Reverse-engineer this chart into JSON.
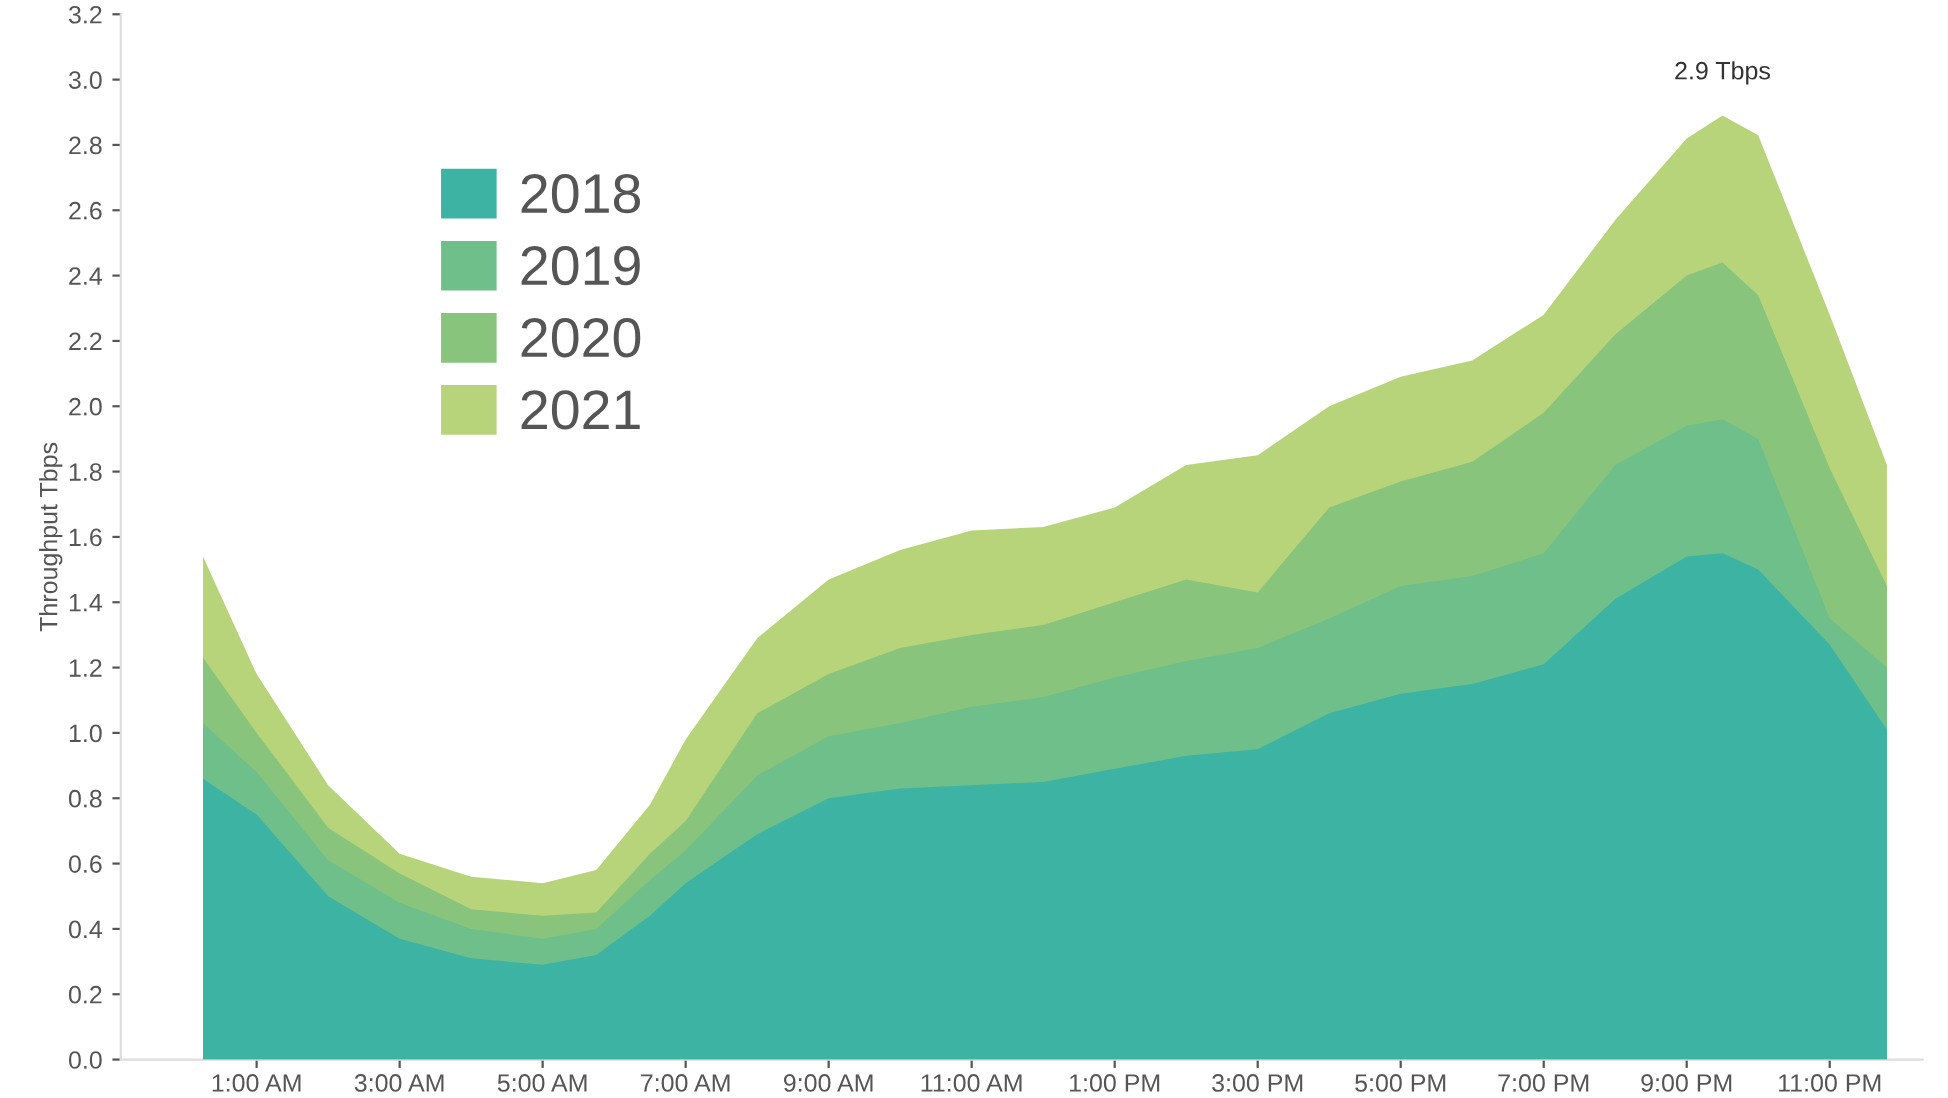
{
  "chart_data": {
    "type": "area",
    "ylabel": "Throughput Tbps",
    "x": [
      0.25,
      1,
      2,
      3,
      4,
      5,
      5.75,
      6.5,
      7,
      8,
      9,
      10,
      11,
      12,
      13,
      14,
      15,
      16,
      17,
      18,
      19,
      20,
      21,
      21.5,
      22,
      23,
      23.8
    ],
    "series": [
      {
        "name": "2018",
        "color": "#3db3a3",
        "values": [
          0.86,
          0.75,
          0.5,
          0.37,
          0.31,
          0.29,
          0.32,
          0.44,
          0.54,
          0.69,
          0.8,
          0.83,
          0.84,
          0.85,
          0.89,
          0.93,
          0.95,
          1.06,
          1.12,
          1.15,
          1.21,
          1.41,
          1.54,
          1.55,
          1.5,
          1.27,
          1.01
        ]
      },
      {
        "name": "2019",
        "color": "#6fbf8a",
        "values": [
          1.03,
          0.88,
          0.61,
          0.48,
          0.4,
          0.37,
          0.4,
          0.55,
          0.64,
          0.87,
          0.99,
          1.03,
          1.08,
          1.11,
          1.17,
          1.22,
          1.26,
          1.35,
          1.45,
          1.48,
          1.55,
          1.82,
          1.94,
          1.96,
          1.9,
          1.35,
          1.2
        ]
      },
      {
        "name": "2020",
        "color": "#88c47c",
        "values": [
          1.23,
          1.0,
          0.71,
          0.57,
          0.46,
          0.44,
          0.45,
          0.63,
          0.73,
          1.06,
          1.18,
          1.26,
          1.3,
          1.33,
          1.4,
          1.47,
          1.43,
          1.69,
          1.77,
          1.83,
          1.98,
          2.22,
          2.4,
          2.44,
          2.34,
          1.81,
          1.45
        ]
      },
      {
        "name": "2021",
        "color": "#b8d47a",
        "values": [
          1.54,
          1.18,
          0.84,
          0.63,
          0.56,
          0.54,
          0.58,
          0.78,
          0.98,
          1.29,
          1.47,
          1.56,
          1.62,
          1.63,
          1.69,
          1.82,
          1.85,
          2.0,
          2.09,
          2.14,
          2.28,
          2.57,
          2.82,
          2.89,
          2.83,
          2.28,
          1.82
        ]
      }
    ],
    "xlim": [
      -0.9,
      24.3
    ],
    "xticks": [
      {
        "value": 1,
        "label": "1:00 AM"
      },
      {
        "value": 3,
        "label": "3:00 AM"
      },
      {
        "value": 5,
        "label": "5:00 AM"
      },
      {
        "value": 7,
        "label": "7:00 AM"
      },
      {
        "value": 9,
        "label": "9:00 AM"
      },
      {
        "value": 11,
        "label": "11:00 AM"
      },
      {
        "value": 13,
        "label": "1:00 PM"
      },
      {
        "value": 15,
        "label": "3:00 PM"
      },
      {
        "value": 17,
        "label": "5:00 PM"
      },
      {
        "value": 19,
        "label": "7:00 PM"
      },
      {
        "value": 21,
        "label": "9:00 PM"
      },
      {
        "value": 23,
        "label": "11:00 PM"
      }
    ],
    "ylim": [
      0,
      3.2
    ],
    "yticks": [
      {
        "value": 0,
        "label": "0.0"
      },
      0.2,
      0.4,
      0.6,
      0.8,
      {
        "value": 1,
        "label": "1.0"
      },
      1.2,
      1.4,
      1.6,
      1.8,
      {
        "value": 2,
        "label": "2.0"
      },
      2.2,
      2.4,
      2.6,
      2.8,
      {
        "value": 3,
        "label": "3.0"
      },
      3.2
    ],
    "annotations": [
      {
        "text": "2.9 Tbps",
        "x": 21.5,
        "y": 2.9
      }
    ],
    "legend": "top left",
    "grid": false
  }
}
